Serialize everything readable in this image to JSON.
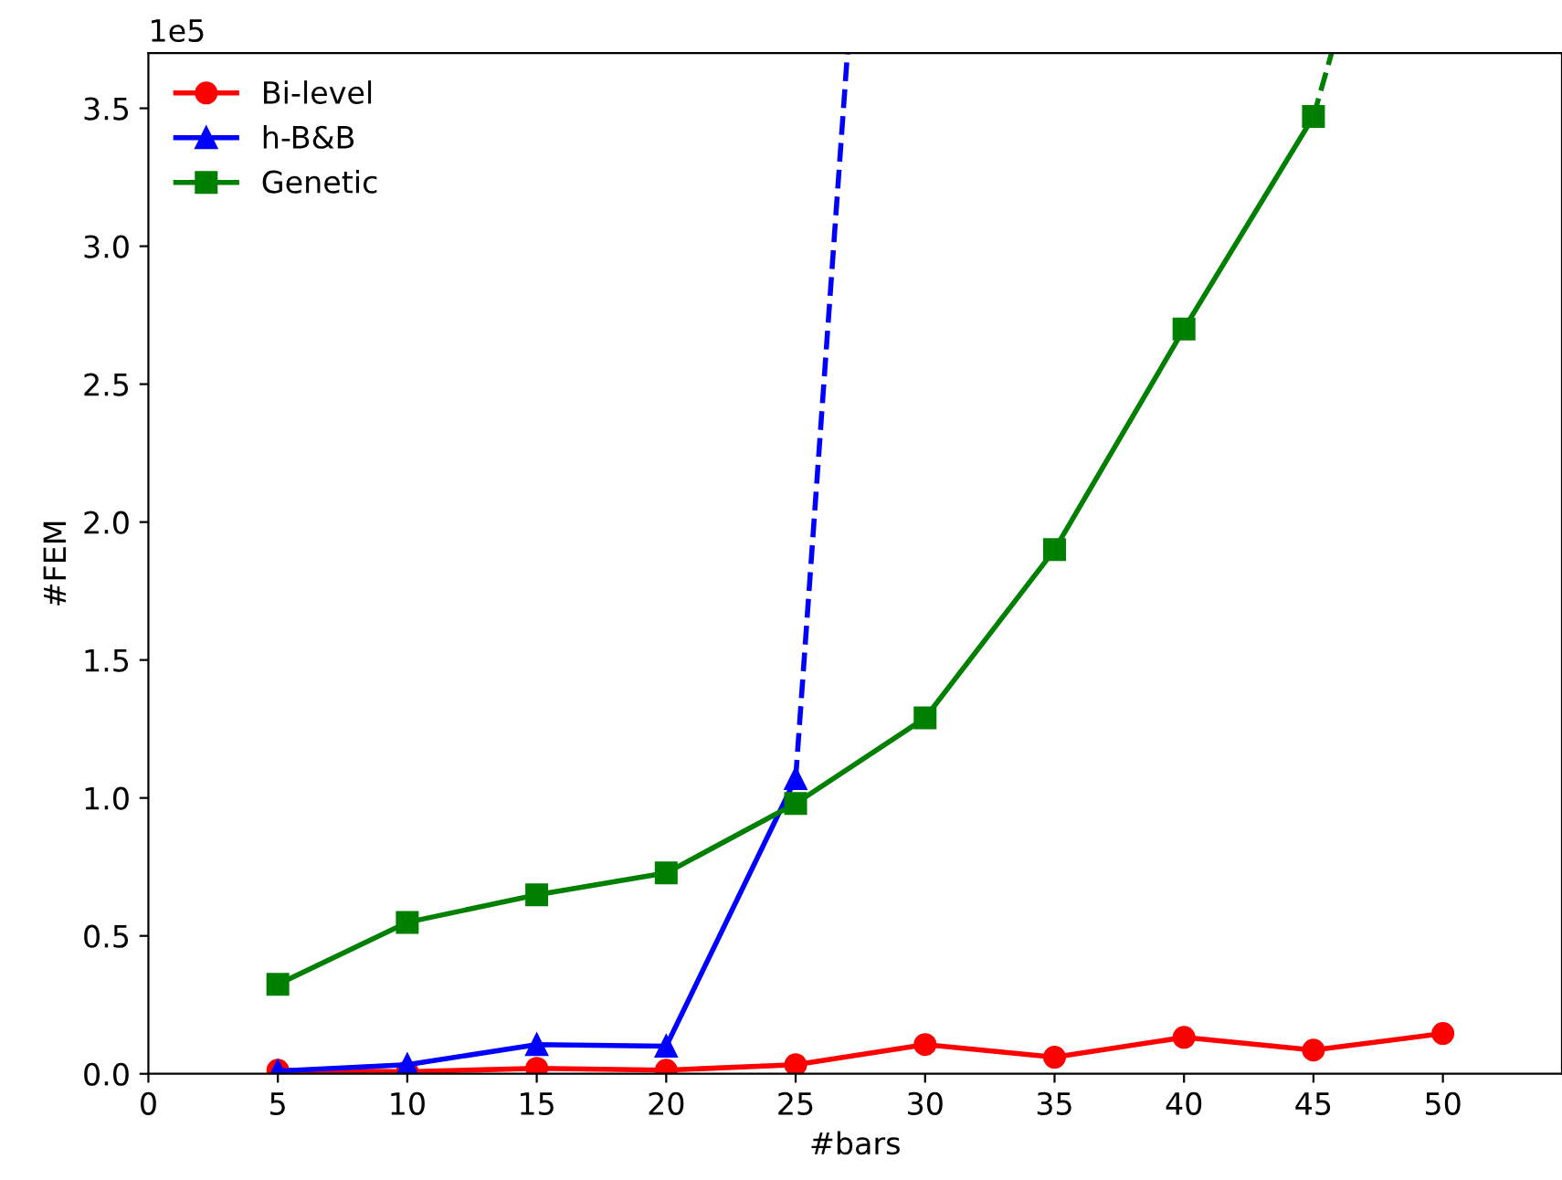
{
  "chart_data": {
    "type": "line",
    "xlabel": "#bars",
    "ylabel": "#FEM",
    "xlim": [
      0,
      54.6
    ],
    "xticks": [
      0,
      5,
      10,
      15,
      20,
      25,
      30,
      35,
      40,
      45,
      50
    ],
    "ylim": [
      0,
      3.7
    ],
    "yticks": [
      {
        "value": 0,
        "label": "0.0"
      },
      0.5,
      {
        "value": 1,
        "label": "1.0"
      },
      1.5,
      {
        "value": 2,
        "label": "2.0"
      },
      2.5,
      {
        "value": 3,
        "label": "3.0"
      },
      3.5
    ],
    "annotations": [
      "1e5"
    ],
    "legend": "top left",
    "grid": false,
    "series": [
      {
        "name": "Bi-level",
        "color": "#ff0000",
        "marker": "circle",
        "x": [
          5,
          10,
          15,
          20,
          25,
          30,
          35,
          40,
          45,
          50
        ],
        "values": [
          0.013,
          0.007,
          0.02,
          0.013,
          0.033,
          0.106,
          0.06,
          0.132,
          0.086,
          0.146
        ]
      },
      {
        "name": "h-B&B",
        "color": "#0000ff",
        "marker": "triangle",
        "x": [
          5,
          10,
          15,
          20,
          25
        ],
        "values": [
          0.01,
          0.033,
          0.106,
          0.1,
          1.07
        ]
      },
      {
        "name": "Genetic",
        "color": "#008000",
        "marker": "square",
        "x": [
          5,
          10,
          15,
          20,
          25,
          30,
          35,
          40,
          45
        ],
        "values": [
          0.324,
          0.549,
          0.649,
          0.728,
          0.98,
          1.29,
          1.9,
          2.7,
          3.47
        ]
      },
      {
        "color": "#0000ff",
        "marker": "none",
        "line_style": "dashed",
        "x": [
          25,
          27.0
        ],
        "values": [
          1.07,
          3.7
        ]
      },
      {
        "color": "#008000",
        "marker": "none",
        "line_style": "dashed",
        "x": [
          45,
          45.7
        ],
        "values": [
          3.47,
          3.7
        ]
      }
    ]
  }
}
